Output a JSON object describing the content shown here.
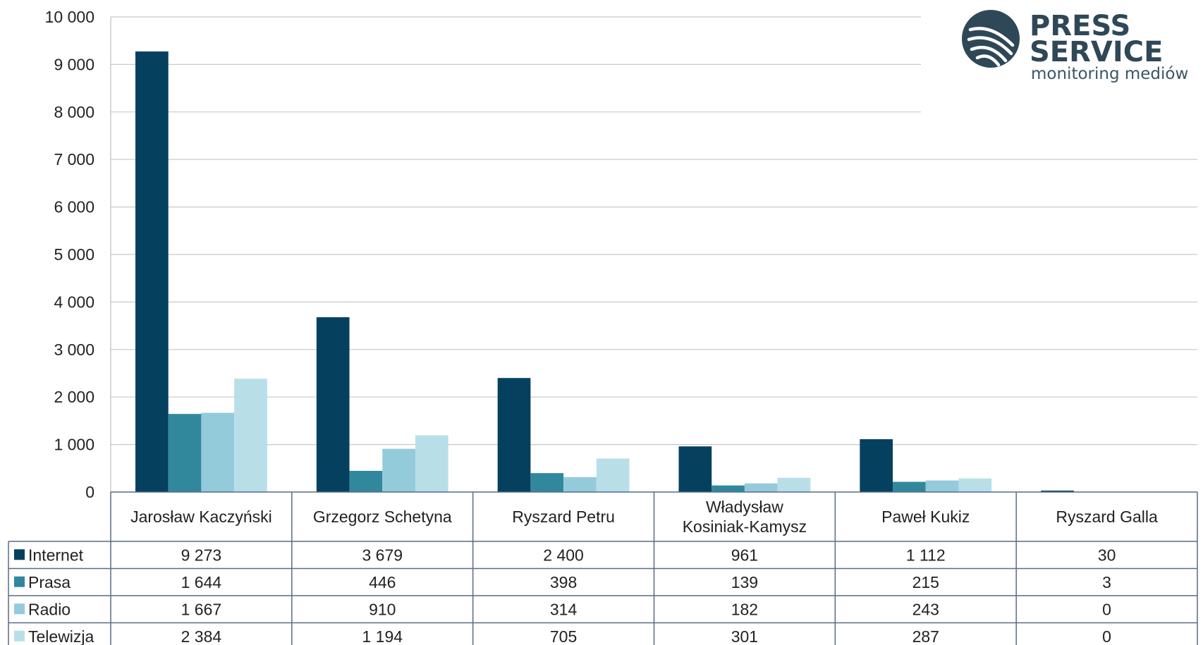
{
  "logo": {
    "line1": "PRESS",
    "line2": "SERVICE",
    "tagline": "monitoring mediów",
    "color": "#2f4858"
  },
  "chart_data": {
    "type": "bar",
    "categories": [
      [
        "Jarosław Kaczyński"
      ],
      [
        "Grzegorz Schetyna"
      ],
      [
        "Ryszard Petru"
      ],
      [
        "Władysław",
        "Kosiniak-Kamysz"
      ],
      [
        "Paweł Kukiz"
      ],
      [
        "Ryszard Galla"
      ]
    ],
    "series": [
      {
        "name": "Internet",
        "color": "#05405f",
        "values": [
          9273,
          3679,
          2400,
          961,
          1112,
          30
        ]
      },
      {
        "name": "Prasa",
        "color": "#31889c",
        "values": [
          1644,
          446,
          398,
          139,
          215,
          3
        ]
      },
      {
        "name": "Radio",
        "color": "#93cbdb",
        "values": [
          1667,
          910,
          314,
          182,
          243,
          0
        ]
      },
      {
        "name": "Telewizja",
        "color": "#b8dfe8",
        "values": [
          2384,
          1194,
          705,
          301,
          287,
          0
        ]
      }
    ],
    "table_values": [
      [
        "9 273",
        "3 679",
        "2 400",
        "961",
        "1 112",
        "30"
      ],
      [
        "1 644",
        "446",
        "398",
        "139",
        "215",
        "3"
      ],
      [
        "1 667",
        "910",
        "314",
        "182",
        "243",
        "0"
      ],
      [
        "2 384",
        "1 194",
        "705",
        "301",
        "287",
        "0"
      ]
    ],
    "yticks": [
      "0",
      "1 000",
      "2 000",
      "3 000",
      "4 000",
      "5 000",
      "6 000",
      "7 000",
      "8 000",
      "9 000",
      "10 000"
    ],
    "ylim": [
      0,
      10000
    ],
    "grid": true,
    "legend": "data-table"
  }
}
